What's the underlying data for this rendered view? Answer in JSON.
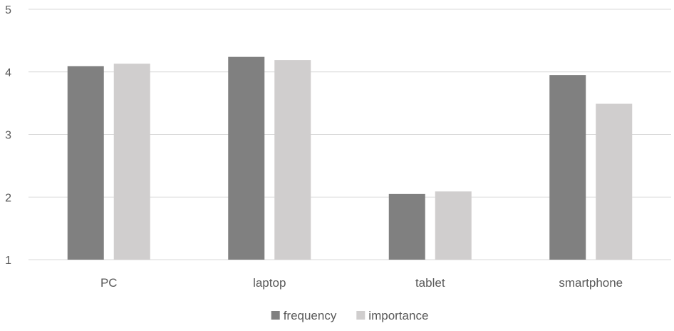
{
  "chart_data": {
    "type": "bar",
    "title": "",
    "xlabel": "",
    "ylabel": "",
    "categories": [
      "PC",
      "laptop",
      "tablet",
      "smartphone"
    ],
    "series": [
      {
        "name": "frequency",
        "values": [
          4.09,
          4.24,
          2.05,
          3.95
        ],
        "color": "#808080"
      },
      {
        "name": "importance",
        "values": [
          4.13,
          4.19,
          2.09,
          3.49
        ],
        "color": "#d0cece"
      }
    ],
    "ylim": [
      1,
      5
    ],
    "yticks": [
      "1",
      "2",
      "3",
      "4",
      "5"
    ],
    "grid": true,
    "legend_position": "bottom"
  }
}
